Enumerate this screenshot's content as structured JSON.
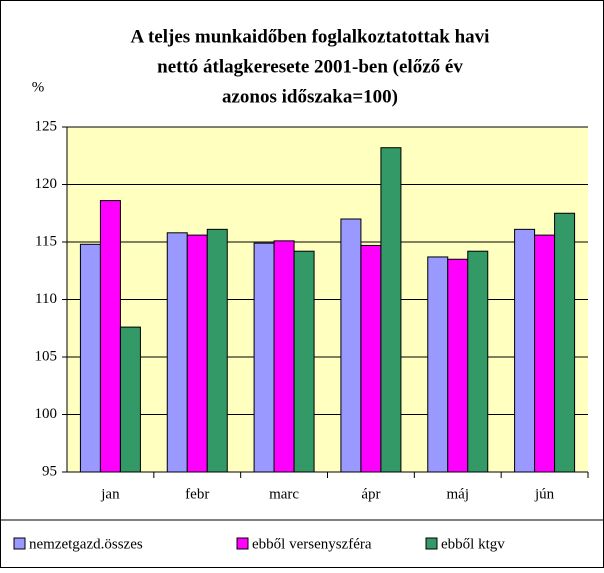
{
  "chart_data": {
    "type": "bar",
    "title": [
      "A teljes munkaidőben foglalkoztatottak havi",
      "nettó átlagkeresete 2001-ben (előző év",
      "azonos időszaka=100)"
    ],
    "y_label": "%",
    "categories": [
      "jan",
      "febr",
      "marc",
      "ápr",
      "máj",
      "jún"
    ],
    "series": [
      {
        "name": "nemzetgazd.összes",
        "color": "#9999ff",
        "values": [
          114.8,
          115.8,
          114.9,
          117.0,
          113.7,
          116.1
        ]
      },
      {
        "name": "ebből versenyszféra",
        "color": "#ff00ff",
        "values": [
          118.6,
          115.6,
          115.1,
          114.7,
          113.5,
          115.6
        ]
      },
      {
        "name": "ebből ktgv",
        "color": "#339966",
        "values": [
          107.6,
          116.1,
          114.2,
          123.2,
          114.2,
          117.5
        ]
      }
    ],
    "ylim": [
      95,
      125
    ],
    "yticks": [
      95,
      100,
      105,
      110,
      115,
      120,
      125
    ],
    "grid": true
  }
}
